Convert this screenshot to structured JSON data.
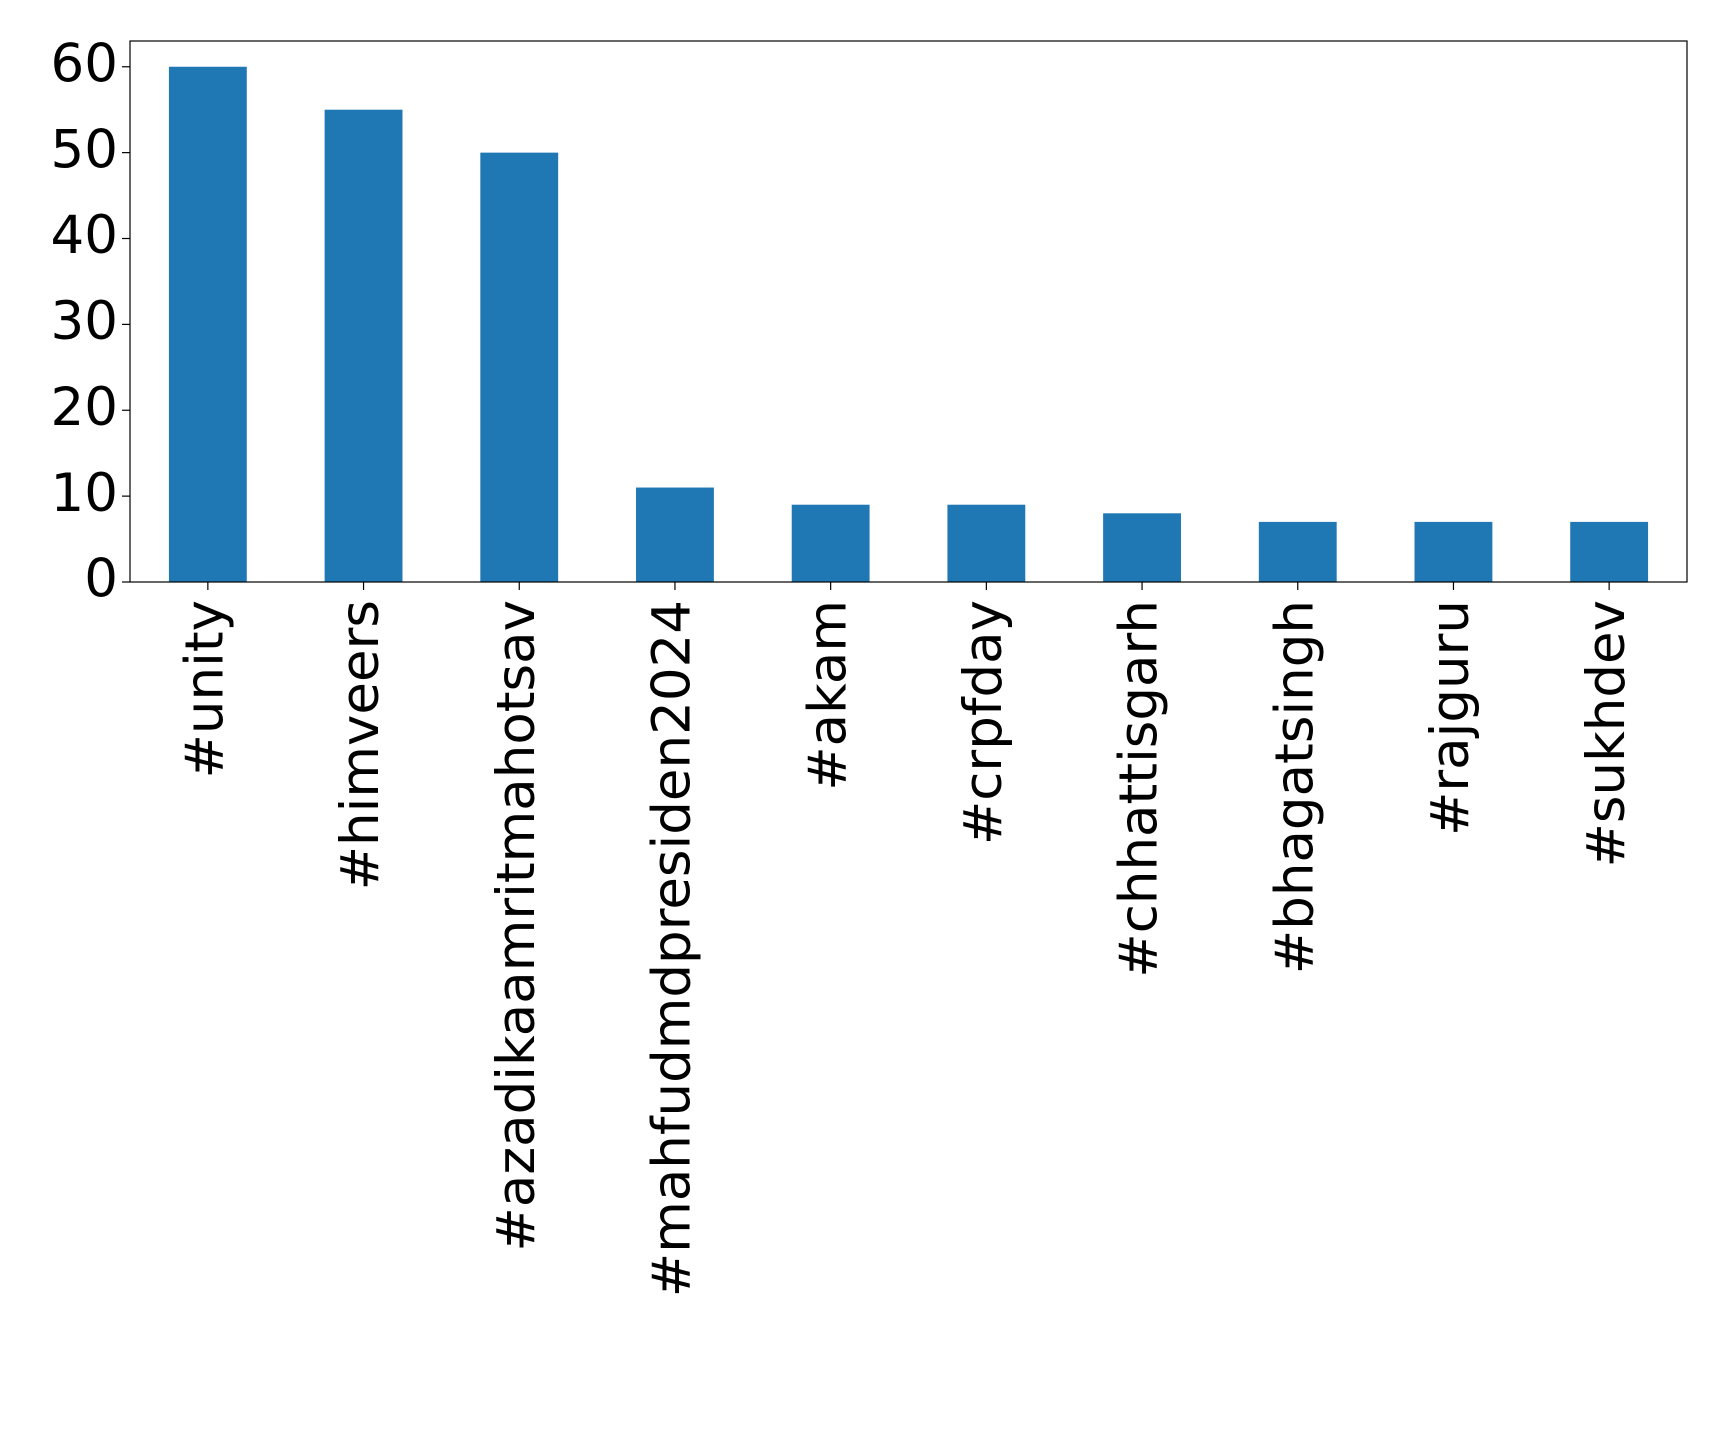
{
  "chart_data": {
    "type": "bar",
    "categories": [
      "#unity",
      "#himveers",
      "#azadikaamritmahotsav",
      "#mahfudmdpresiden2024",
      "#akam",
      "#crpfday",
      "#chhattisgarh",
      "#bhagatsingh",
      "#rajguru",
      "#sukhdev"
    ],
    "values": [
      60,
      55,
      50,
      11,
      9,
      9,
      8,
      7,
      7,
      7
    ],
    "color": "#1f77b4",
    "ylim": [
      0,
      63
    ],
    "yticks": [
      0,
      10,
      20,
      30,
      40,
      50,
      60
    ],
    "grid": false
  }
}
